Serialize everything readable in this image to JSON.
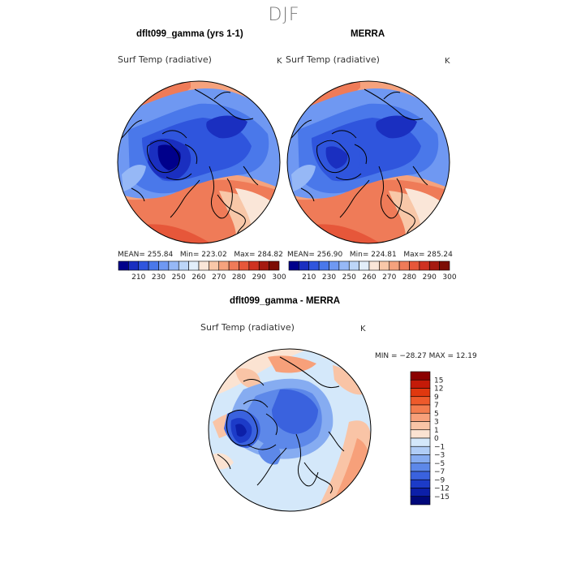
{
  "figure": {
    "season": "DJF",
    "panel_left": {
      "title": "dflt099_gamma (yrs 1-1)",
      "variable": "Surf Temp (radiative)",
      "unit": "K",
      "mean_label": "MEAN=",
      "mean": "255.84",
      "min_label": "Min=",
      "min": "223.02",
      "max_label": "Max=",
      "max": "284.82"
    },
    "panel_right": {
      "title": "MERRA",
      "variable": "Surf Temp (radiative)",
      "unit": "K",
      "mean_label": "MEAN=",
      "mean": "256.90",
      "min_label": "Min=",
      "min": "224.81",
      "max_label": "Max=",
      "max": "285.24"
    },
    "panel_diff": {
      "title": "dflt099_gamma - MERRA",
      "variable": "Surf Temp (radiative)",
      "unit": "K",
      "minmax_label": "MIN = −28.27 MAX =   12.19"
    }
  },
  "chart_data": [
    {
      "type": "heatmap",
      "projection": "north-polar-stereographic",
      "title": "dflt099_gamma (yrs 1-1)",
      "variable": "Surf Temp (radiative)",
      "unit": "K",
      "stats": {
        "mean": 255.84,
        "min": 223.02,
        "max": 284.82
      },
      "colorbar": {
        "levels": [
          210,
          230,
          250,
          260,
          270,
          280,
          290,
          300
        ],
        "tick_labels": [
          "210",
          "230",
          "250",
          "260",
          "270",
          "280",
          "290",
          "300"
        ],
        "colors": [
          "#00008b",
          "#1a2fc0",
          "#2f55dd",
          "#4a78ea",
          "#6f98f2",
          "#96b8f6",
          "#bcd5f8",
          "#e2eefa",
          "#fae6d8",
          "#f8c7a8",
          "#f5a27d",
          "#ef7b58",
          "#e6573a",
          "#cf3221",
          "#a51a10",
          "#7d0d05"
        ]
      }
    },
    {
      "type": "heatmap",
      "projection": "north-polar-stereographic",
      "title": "MERRA",
      "variable": "Surf Temp (radiative)",
      "unit": "K",
      "stats": {
        "mean": 256.9,
        "min": 224.81,
        "max": 285.24
      },
      "colorbar": {
        "levels": [
          210,
          230,
          250,
          260,
          270,
          280,
          290,
          300
        ],
        "tick_labels": [
          "210",
          "230",
          "250",
          "260",
          "270",
          "280",
          "290",
          "300"
        ],
        "colors": [
          "#00008b",
          "#1a2fc0",
          "#2f55dd",
          "#4a78ea",
          "#6f98f2",
          "#96b8f6",
          "#bcd5f8",
          "#e2eefa",
          "#fae6d8",
          "#f8c7a8",
          "#f5a27d",
          "#ef7b58",
          "#e6573a",
          "#cf3221",
          "#a51a10",
          "#7d0d05"
        ]
      }
    },
    {
      "type": "heatmap",
      "projection": "north-polar-stereographic",
      "title": "dflt099_gamma - MERRA",
      "variable": "Surf Temp (radiative)",
      "unit": "K",
      "stats": {
        "min": -28.27,
        "max": 12.19
      },
      "colorbar": {
        "orientation": "vertical",
        "tick_labels": [
          "15",
          "12",
          "9",
          "7",
          "5",
          "3",
          "1",
          "0",
          "−1",
          "−3",
          "−5",
          "−7",
          "−9",
          "−12",
          "−15"
        ],
        "colors": [
          "#8b0000",
          "#c41a08",
          "#e0380f",
          "#ee5a2b",
          "#f37c4e",
          "#f7a07a",
          "#f9c4a6",
          "#fbe3d2",
          "#d4e8fa",
          "#b0cdf6",
          "#86acf1",
          "#5d88e9",
          "#3a62de",
          "#1c3bc8",
          "#0c1fa8",
          "#00087a"
        ]
      }
    }
  ]
}
